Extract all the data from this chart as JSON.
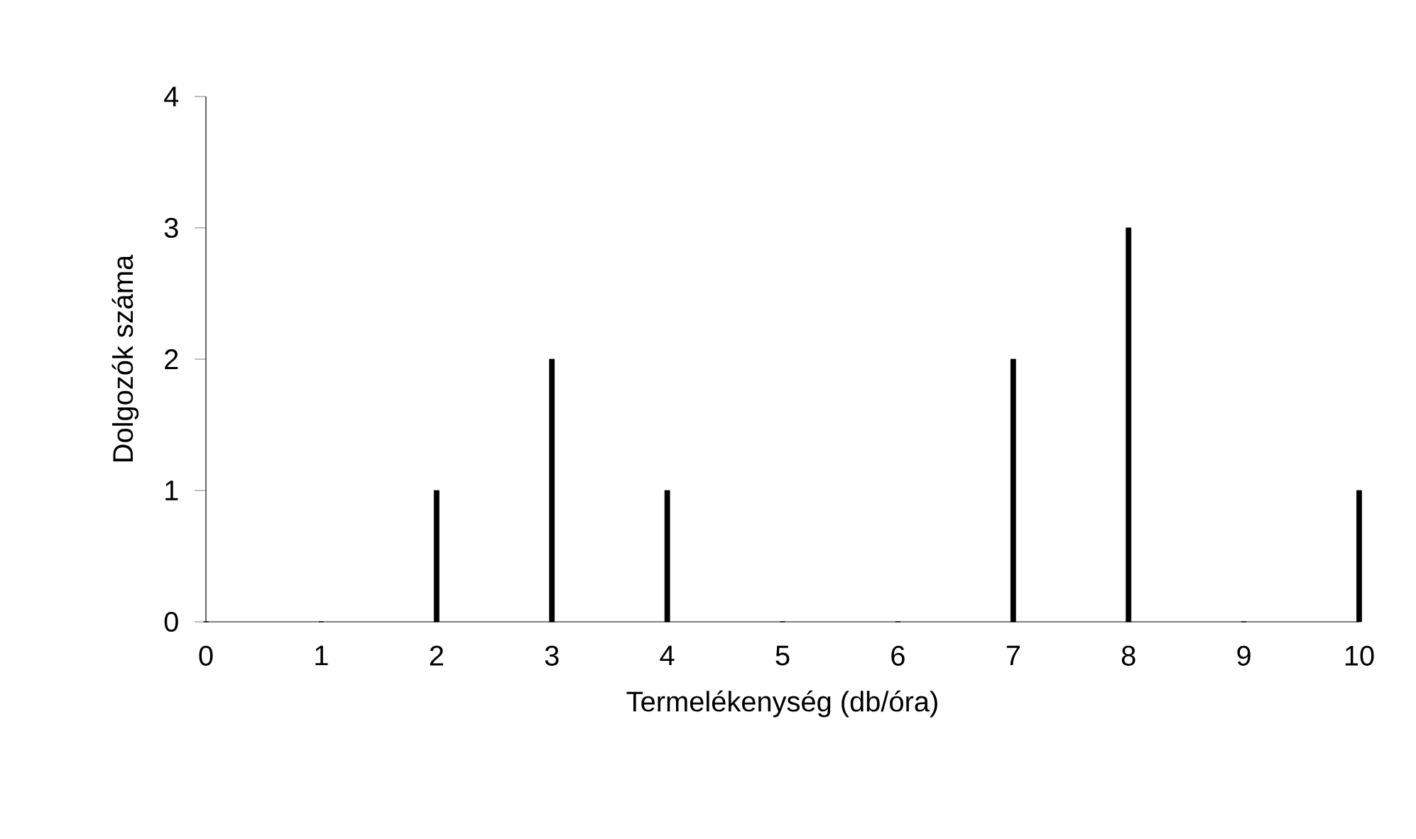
{
  "chart_data": {
    "type": "bar",
    "xlabel": "Termelékenység (db/óra)",
    "ylabel": "Dolgozók száma",
    "x": [
      0,
      1,
      2,
      3,
      4,
      5,
      6,
      7,
      8,
      9,
      10
    ],
    "values": [
      0,
      0,
      1,
      2,
      1,
      0,
      0,
      2,
      3,
      0,
      1
    ],
    "color": "#000000",
    "xlim": [
      0,
      10
    ],
    "xticks": [
      0,
      1,
      2,
      3,
      4,
      5,
      6,
      7,
      8,
      9,
      10
    ],
    "ylim": [
      0,
      4
    ],
    "yticks": [
      0,
      1,
      2,
      3,
      4
    ],
    "grid": false
  }
}
